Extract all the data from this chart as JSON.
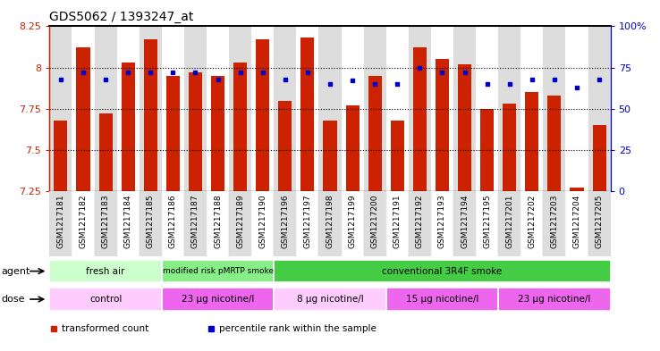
{
  "title": "GDS5062 / 1393247_at",
  "samples": [
    "GSM1217181",
    "GSM1217182",
    "GSM1217183",
    "GSM1217184",
    "GSM1217185",
    "GSM1217186",
    "GSM1217187",
    "GSM1217188",
    "GSM1217189",
    "GSM1217190",
    "GSM1217196",
    "GSM1217197",
    "GSM1217198",
    "GSM1217199",
    "GSM1217200",
    "GSM1217191",
    "GSM1217192",
    "GSM1217193",
    "GSM1217194",
    "GSM1217195",
    "GSM1217201",
    "GSM1217202",
    "GSM1217203",
    "GSM1217204",
    "GSM1217205"
  ],
  "bar_values": [
    7.68,
    8.12,
    7.72,
    8.03,
    8.17,
    7.95,
    7.97,
    7.95,
    8.03,
    8.17,
    7.8,
    8.18,
    7.68,
    7.77,
    7.95,
    7.68,
    8.12,
    8.05,
    8.02,
    7.75,
    7.78,
    7.85,
    7.83,
    7.27,
    7.65
  ],
  "percentile_values": [
    68,
    72,
    68,
    72,
    72,
    72,
    72,
    68,
    72,
    72,
    68,
    72,
    65,
    67,
    65,
    65,
    75,
    72,
    72,
    65,
    65,
    68,
    68,
    63,
    68
  ],
  "ymin": 7.25,
  "ymax": 8.25,
  "yticks": [
    7.25,
    7.5,
    7.75,
    8.0,
    8.25
  ],
  "ytick_labels": [
    "7.25",
    "7.5",
    "7.75",
    "8",
    "8.25"
  ],
  "right_yticks": [
    0,
    25,
    50,
    75,
    100
  ],
  "right_ytick_labels": [
    "0",
    "25",
    "50",
    "75",
    "100%"
  ],
  "bar_color": "#CC2200",
  "dot_color": "#0000CC",
  "bar_width": 0.6,
  "agent_groups": [
    {
      "label": "fresh air",
      "start": 0,
      "end": 5,
      "color": "#CCFFCC"
    },
    {
      "label": "modified risk pMRTP smoke",
      "start": 5,
      "end": 10,
      "color": "#88EE88"
    },
    {
      "label": "conventional 3R4F smoke",
      "start": 10,
      "end": 25,
      "color": "#44CC44"
    }
  ],
  "dose_groups": [
    {
      "label": "control",
      "start": 0,
      "end": 5,
      "color": "#FFCCFF"
    },
    {
      "label": "23 μg nicotine/l",
      "start": 5,
      "end": 10,
      "color": "#EE66EE"
    },
    {
      "label": "8 μg nicotine/l",
      "start": 10,
      "end": 15,
      "color": "#FFCCFF"
    },
    {
      "label": "15 μg nicotine/l",
      "start": 15,
      "end": 20,
      "color": "#EE66EE"
    },
    {
      "label": "23 μg nicotine/l",
      "start": 20,
      "end": 25,
      "color": "#EE66EE"
    }
  ],
  "legend_items": [
    {
      "label": "transformed count",
      "color": "#CC2200"
    },
    {
      "label": "percentile rank within the sample",
      "color": "#0000CC"
    }
  ],
  "agent_label": "agent",
  "dose_label": "dose",
  "col_bg_even": "#DDDDDD",
  "col_bg_odd": "#FFFFFF",
  "xlabel_fontsize": 6.5,
  "tick_fontsize": 8,
  "title_fontsize": 10
}
